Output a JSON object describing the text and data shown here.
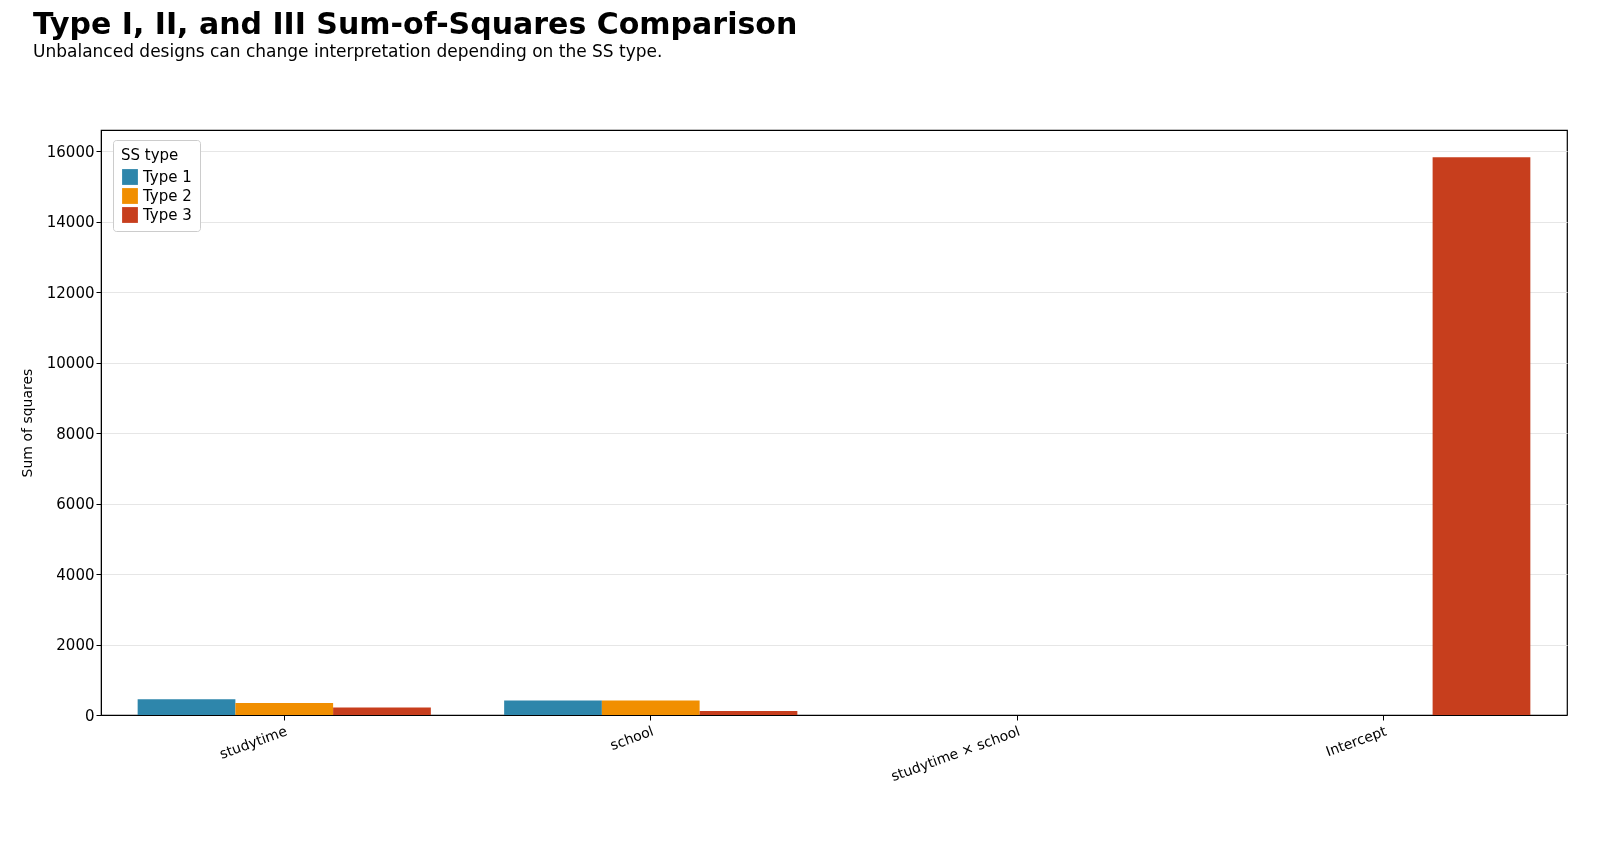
{
  "chart_data": {
    "type": "bar",
    "title": "Type I, II, and III Sum-of-Squares Comparison",
    "subtitle": "Unbalanced designs can change interpretation depending on the SS type.",
    "ylabel": "Sum of squares",
    "legend_title": "SS type",
    "categories": [
      "studytime",
      "school",
      "studytime × school",
      "Intercept"
    ],
    "series": [
      {
        "name": "Type 1",
        "color": "#2e86ab",
        "values": [
          450,
          410,
          0,
          null
        ]
      },
      {
        "name": "Type 2",
        "color": "#f18f01",
        "values": [
          340,
          410,
          0,
          null
        ]
      },
      {
        "name": "Type 3",
        "color": "#c73e1d",
        "values": [
          210,
          110,
          0,
          15830
        ]
      }
    ],
    "ylim": [
      0,
      16600
    ],
    "yticks": [
      0,
      2000,
      4000,
      6000,
      8000,
      10000,
      12000,
      14000,
      16000
    ],
    "grid": "y",
    "legend": "top left"
  }
}
